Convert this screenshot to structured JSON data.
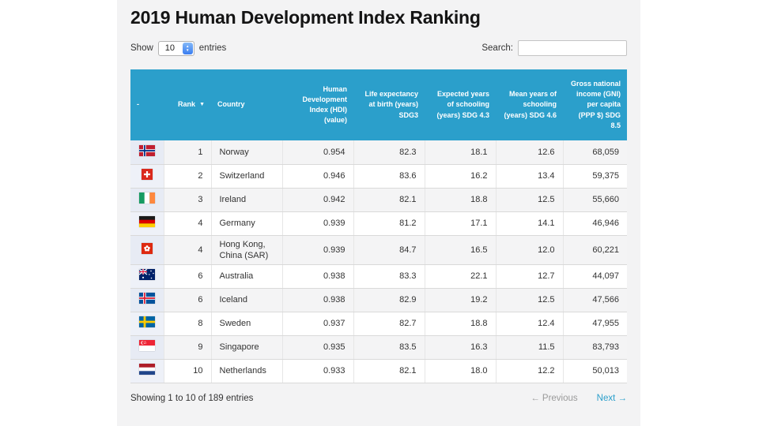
{
  "page": {
    "title": "2019 Human Development Index Ranking"
  },
  "controls": {
    "show_label": "Show",
    "entries_value": "10",
    "entries_suffix": "entries",
    "search_label": "Search:",
    "search_value": ""
  },
  "table": {
    "columns": [
      {
        "id": "select",
        "label": "-",
        "align": "left"
      },
      {
        "id": "rank",
        "label": "Rank",
        "align": "right",
        "sort_icon": "▼"
      },
      {
        "id": "country",
        "label": "Country",
        "align": "left"
      },
      {
        "id": "hdi",
        "label": "Human Development Index (HDI) (value)",
        "align": "right"
      },
      {
        "id": "life-expectancy",
        "label": "Life expectancy at birth (years) SDG3",
        "align": "right"
      },
      {
        "id": "expected-years",
        "label": "Expected years of schooling (years) SDG 4.3",
        "align": "right"
      },
      {
        "id": "mean-years",
        "label": "Mean years of schooling (years) SDG 4.6",
        "align": "right"
      },
      {
        "id": "gni",
        "label": "Gross national income (GNI) per capita (PPP $) SDG 8.5",
        "align": "right"
      }
    ],
    "rows": [
      {
        "flag": "norway",
        "rank": "1",
        "country": "Norway",
        "hdi": "0.954",
        "life": "82.3",
        "eys": "18.1",
        "mys": "12.6",
        "gni": "68,059"
      },
      {
        "flag": "switzerland",
        "rank": "2",
        "country": "Switzerland",
        "hdi": "0.946",
        "life": "83.6",
        "eys": "16.2",
        "mys": "13.4",
        "gni": "59,375"
      },
      {
        "flag": "ireland",
        "rank": "3",
        "country": "Ireland",
        "hdi": "0.942",
        "life": "82.1",
        "eys": "18.8",
        "mys": "12.5",
        "gni": "55,660"
      },
      {
        "flag": "germany",
        "rank": "4",
        "country": "Germany",
        "hdi": "0.939",
        "life": "81.2",
        "eys": "17.1",
        "mys": "14.1",
        "gni": "46,946"
      },
      {
        "flag": "hongkong",
        "rank": "4",
        "country": "Hong Kong, China (SAR)",
        "hdi": "0.939",
        "life": "84.7",
        "eys": "16.5",
        "mys": "12.0",
        "gni": "60,221"
      },
      {
        "flag": "australia",
        "rank": "6",
        "country": "Australia",
        "hdi": "0.938",
        "life": "83.3",
        "eys": "22.1",
        "mys": "12.7",
        "gni": "44,097"
      },
      {
        "flag": "iceland",
        "rank": "6",
        "country": "Iceland",
        "hdi": "0.938",
        "life": "82.9",
        "eys": "19.2",
        "mys": "12.5",
        "gni": "47,566"
      },
      {
        "flag": "sweden",
        "rank": "8",
        "country": "Sweden",
        "hdi": "0.937",
        "life": "82.7",
        "eys": "18.8",
        "mys": "12.4",
        "gni": "47,955"
      },
      {
        "flag": "singapore",
        "rank": "9",
        "country": "Singapore",
        "hdi": "0.935",
        "life": "83.5",
        "eys": "16.3",
        "mys": "11.5",
        "gni": "83,793"
      },
      {
        "flag": "netherlands",
        "rank": "10",
        "country": "Netherlands",
        "hdi": "0.933",
        "life": "82.1",
        "eys": "18.0",
        "mys": "12.2",
        "gni": "50,013"
      }
    ]
  },
  "footer": {
    "info": "Showing 1 to 10 of 189 entries",
    "previous_label": "← Previous",
    "next_label": "Next →"
  },
  "colors": {
    "header_bg": "#2b9fcb",
    "link_accent": "#2b9fcb",
    "row_stripe": "#f4f4f5",
    "flag_column_odd": "#e7ebf4",
    "flag_column_even": "#eef1f8",
    "page_panel_bg": "#f3f3f4"
  }
}
